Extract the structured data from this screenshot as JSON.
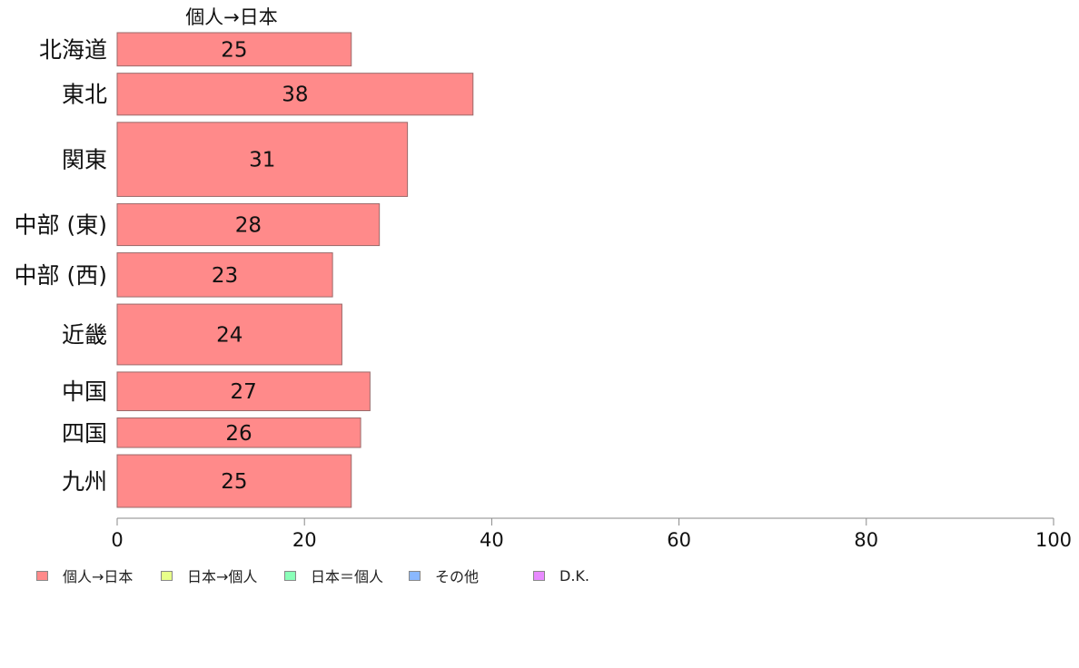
{
  "chart_data": {
    "type": "bar",
    "orientation": "horizontal",
    "title": "個人→日本",
    "categories": [
      "北海道",
      "東北",
      "関東",
      "中部 (東)",
      "中部 (西)",
      "近畿",
      "中国",
      "四国",
      "九州"
    ],
    "series": [
      {
        "name": "個人→日本",
        "color": "#ff8a8a",
        "values": [
          25,
          38,
          31,
          28,
          23,
          24,
          27,
          26,
          25
        ]
      }
    ],
    "data_labels": [
      "25",
      "38",
      "31",
      "28",
      "23",
      "24",
      "27",
      "26",
      "25"
    ],
    "bar_thickness_relative": [
      0.62,
      0.78,
      1.38,
      0.78,
      0.82,
      1.13,
      0.72,
      0.55,
      0.98
    ],
    "xlim": [
      0,
      100
    ],
    "xticks": [
      0,
      20,
      40,
      60,
      80,
      100
    ],
    "xlabel": "",
    "ylabel": "",
    "grid": false,
    "legend_position": "bottom-left"
  },
  "legend": {
    "items": [
      {
        "label": "個人→日本",
        "color": "#ff8a8a"
      },
      {
        "label": "日本→個人",
        "color": "#e8ff8a"
      },
      {
        "label": "日本＝個人",
        "color": "#8affb8"
      },
      {
        "label": "その他",
        "color": "#8ab8ff"
      },
      {
        "label": "D.K.",
        "color": "#e88aff"
      }
    ]
  }
}
